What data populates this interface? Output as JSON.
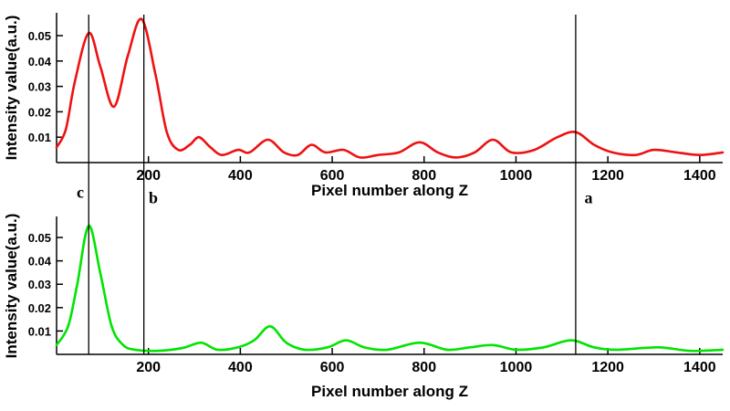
{
  "figure": {
    "background": "#ffffff",
    "axis_color": "#000000"
  },
  "markers": [
    {
      "label": "c",
      "x": 70
    },
    {
      "label": "b",
      "x": 190
    },
    {
      "label": "a",
      "x": 1130
    }
  ],
  "chart_data": [
    {
      "id": "top",
      "type": "line",
      "title": "",
      "xlabel": "Pixel number along Z",
      "ylabel": "Intensity value(a.u.)",
      "xlim": [
        0,
        1450
      ],
      "ylim": [
        0,
        0.059
      ],
      "xticks": [
        200,
        400,
        600,
        800,
        1000,
        1200,
        1400
      ],
      "yticks": [
        0.01,
        0.02,
        0.03,
        0.04,
        0.05
      ],
      "grid": false,
      "legend": "none",
      "series": [
        {
          "name": "red-intensity-profile",
          "color": "#ee1111",
          "points": [
            [
              0,
              0.006
            ],
            [
              20,
              0.013
            ],
            [
              40,
              0.032
            ],
            [
              70,
              0.051
            ],
            [
              95,
              0.038
            ],
            [
              125,
              0.022
            ],
            [
              155,
              0.042
            ],
            [
              185,
              0.0565
            ],
            [
              215,
              0.035
            ],
            [
              240,
              0.012
            ],
            [
              265,
              0.005
            ],
            [
              290,
              0.007
            ],
            [
              310,
              0.01
            ],
            [
              335,
              0.006
            ],
            [
              360,
              0.003
            ],
            [
              395,
              0.005
            ],
            [
              420,
              0.004
            ],
            [
              460,
              0.009
            ],
            [
              495,
              0.004
            ],
            [
              525,
              0.003
            ],
            [
              555,
              0.007
            ],
            [
              585,
              0.004
            ],
            [
              625,
              0.005
            ],
            [
              660,
              0.002
            ],
            [
              700,
              0.003
            ],
            [
              745,
              0.004
            ],
            [
              790,
              0.008
            ],
            [
              830,
              0.004
            ],
            [
              870,
              0.002
            ],
            [
              910,
              0.004
            ],
            [
              950,
              0.009
            ],
            [
              990,
              0.004
            ],
            [
              1040,
              0.005
            ],
            [
              1090,
              0.01
            ],
            [
              1130,
              0.012
            ],
            [
              1170,
              0.007
            ],
            [
              1210,
              0.004
            ],
            [
              1260,
              0.003
            ],
            [
              1300,
              0.005
            ],
            [
              1350,
              0.004
            ],
            [
              1400,
              0.003
            ],
            [
              1450,
              0.004
            ]
          ]
        }
      ]
    },
    {
      "id": "bottom",
      "type": "line",
      "title": "",
      "xlabel": "Pixel number along Z",
      "ylabel": "Intensity value(a.u.)",
      "xlim": [
        0,
        1450
      ],
      "ylim": [
        0,
        0.059
      ],
      "xticks": [
        200,
        400,
        600,
        800,
        1000,
        1200,
        1400
      ],
      "yticks": [
        0.01,
        0.02,
        0.03,
        0.04,
        0.05
      ],
      "grid": false,
      "legend": "none",
      "series": [
        {
          "name": "green-intensity-profile",
          "color": "#00e400",
          "points": [
            [
              0,
              0.004
            ],
            [
              25,
              0.012
            ],
            [
              45,
              0.03
            ],
            [
              70,
              0.055
            ],
            [
              95,
              0.035
            ],
            [
              120,
              0.012
            ],
            [
              145,
              0.004
            ],
            [
              170,
              0.002
            ],
            [
              210,
              0.0015
            ],
            [
              250,
              0.002
            ],
            [
              280,
              0.003
            ],
            [
              315,
              0.005
            ],
            [
              350,
              0.002
            ],
            [
              395,
              0.003
            ],
            [
              430,
              0.006
            ],
            [
              465,
              0.012
            ],
            [
              500,
              0.005
            ],
            [
              540,
              0.002
            ],
            [
              590,
              0.003
            ],
            [
              630,
              0.006
            ],
            [
              670,
              0.003
            ],
            [
              720,
              0.002
            ],
            [
              790,
              0.005
            ],
            [
              850,
              0.002
            ],
            [
              900,
              0.003
            ],
            [
              950,
              0.004
            ],
            [
              1000,
              0.002
            ],
            [
              1060,
              0.003
            ],
            [
              1120,
              0.006
            ],
            [
              1170,
              0.003
            ],
            [
              1220,
              0.002
            ],
            [
              1310,
              0.003
            ],
            [
              1380,
              0.0015
            ],
            [
              1450,
              0.002
            ]
          ]
        }
      ]
    }
  ]
}
